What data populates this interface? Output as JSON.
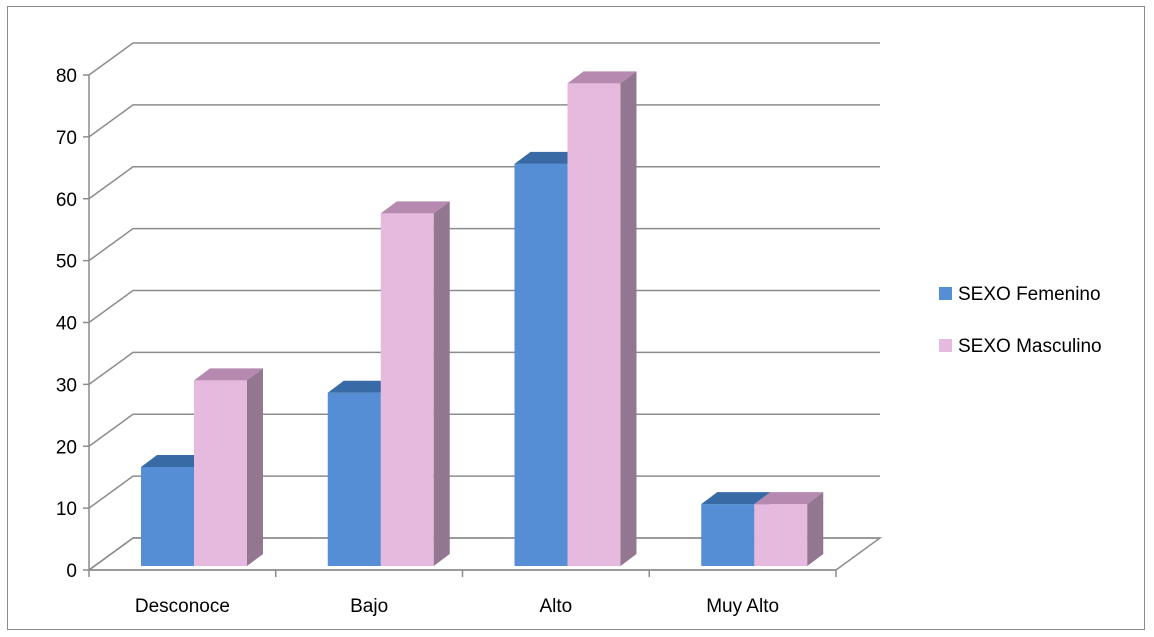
{
  "chart_data": {
    "type": "bar",
    "categories": [
      "Desconoce",
      "Bajo",
      "Alto",
      "Muy Alto"
    ],
    "series": [
      {
        "name": "SEXO Femenino",
        "values": [
          16,
          28,
          65,
          10
        ],
        "color": "#558ed5",
        "top_color": "#386aa6",
        "side_color": "#3b6597"
      },
      {
        "name": "SEXO Masculino",
        "values": [
          30,
          57,
          78,
          10
        ],
        "color": "#e6b9de",
        "top_color": "#b68ab0",
        "side_color": "#93768f"
      }
    ],
    "yticks": [
      0,
      10,
      20,
      30,
      40,
      50,
      60,
      70,
      80
    ],
    "ylim": [
      0,
      80
    ],
    "grid": true,
    "legend": "right",
    "title": "",
    "xlabel": "",
    "ylabel": ""
  }
}
